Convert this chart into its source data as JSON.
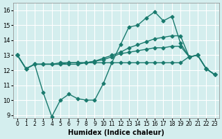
{
  "xlabel": "Humidex (Indice chaleur)",
  "ylabel": "",
  "bg_color": "#d4eeee",
  "grid_color": "#ffffff",
  "line_color": "#1a7a6e",
  "xlim": [
    -0.5,
    23.5
  ],
  "ylim": [
    9,
    16.5
  ],
  "yticks": [
    9,
    10,
    11,
    12,
    13,
    14,
    15,
    16
  ],
  "xticks": [
    0,
    1,
    2,
    3,
    4,
    5,
    6,
    7,
    8,
    9,
    10,
    11,
    12,
    13,
    14,
    15,
    16,
    17,
    18,
    19,
    20,
    21,
    22,
    23
  ],
  "hours": [
    0,
    1,
    2,
    3,
    4,
    5,
    6,
    7,
    8,
    9,
    10,
    11,
    12,
    13,
    14,
    15,
    16,
    17,
    18,
    19,
    20,
    21,
    22,
    23
  ],
  "line_max": [
    13.0,
    12.1,
    12.4,
    10.5,
    8.9,
    10.0,
    10.4,
    10.1,
    10.0,
    10.0,
    11.1,
    12.5,
    13.7,
    14.9,
    15.0,
    15.5,
    15.9,
    15.3,
    15.6,
    13.8,
    12.9,
    13.0,
    12.1,
    11.7
  ],
  "line_mid1": [
    13.0,
    12.1,
    12.4,
    12.4,
    12.4,
    12.4,
    12.4,
    12.4,
    12.5,
    12.6,
    12.8,
    13.0,
    13.2,
    13.5,
    13.7,
    13.9,
    14.1,
    14.2,
    14.3,
    14.3,
    12.9,
    13.0,
    12.1,
    11.7
  ],
  "line_mid2": [
    13.0,
    12.1,
    12.4,
    12.4,
    12.4,
    12.4,
    12.5,
    12.5,
    12.5,
    12.6,
    12.7,
    12.9,
    13.1,
    13.2,
    13.3,
    13.4,
    13.5,
    13.5,
    13.6,
    13.6,
    12.9,
    13.0,
    12.1,
    11.7
  ],
  "line_min": [
    13.0,
    12.1,
    12.4,
    12.4,
    12.4,
    12.5,
    12.5,
    12.5,
    12.5,
    12.5,
    12.5,
    12.5,
    12.5,
    12.5,
    12.5,
    12.5,
    12.5,
    12.5,
    12.5,
    12.5,
    12.9,
    13.0,
    12.1,
    11.7
  ]
}
